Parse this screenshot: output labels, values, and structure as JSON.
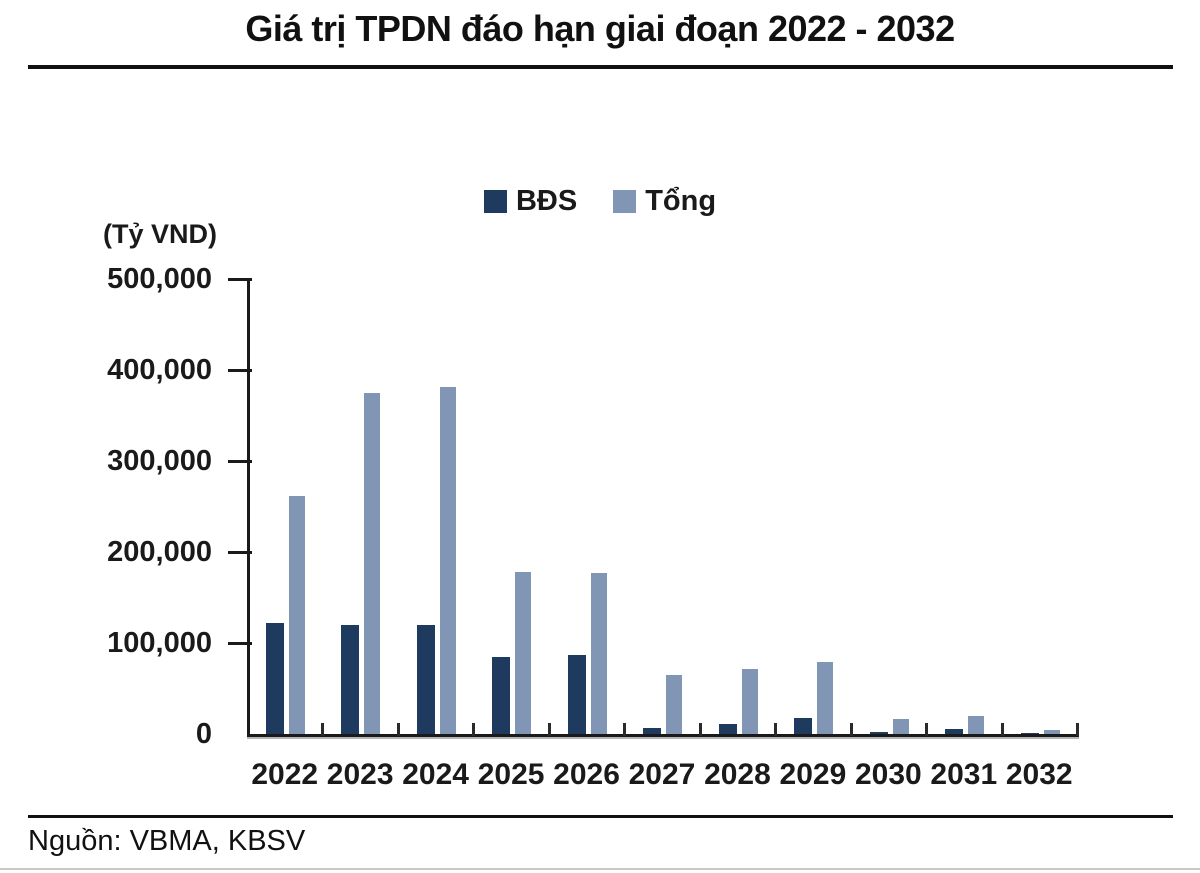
{
  "title": "Giá trị TPDN đáo hạn giai đoạn 2022 - 2032",
  "axis_unit": "(Tỷ VND)",
  "source": "Nguồn: VBMA, KBSV",
  "legend": [
    {
      "label": "BĐS",
      "color": "#1e3a5f"
    },
    {
      "label": "Tổng",
      "color": "#8096b4"
    }
  ],
  "colors": {
    "bds": "#1e3a5f",
    "tong": "#8096b4",
    "axis": "#1a1a1a",
    "axis_shadow": "#b5b5b5",
    "bottom_rule": "#c9c9c9"
  },
  "chart_data": {
    "type": "bar",
    "title": "Giá trị TPDN đáo hạn giai đoạn 2022 - 2032",
    "ylabel": "(Tỷ VND)",
    "xlabel": "",
    "categories": [
      "2022",
      "2023",
      "2024",
      "2025",
      "2026",
      "2027",
      "2028",
      "2029",
      "2030",
      "2031",
      "2032"
    ],
    "series": [
      {
        "name": "BĐS",
        "color": "#1e3a5f",
        "values": [
          122000,
          120000,
          120000,
          85000,
          87000,
          7000,
          11000,
          18000,
          2000,
          6000,
          1000
        ]
      },
      {
        "name": "Tổng",
        "color": "#8096b4",
        "values": [
          262000,
          375000,
          381000,
          178000,
          177000,
          65000,
          71000,
          79000,
          16000,
          20000,
          4000
        ]
      }
    ],
    "ylim": [
      0,
      500000
    ],
    "ytick_step": 100000,
    "ytick_labels": [
      "0",
      "100,000",
      "200,000",
      "300,000",
      "400,000",
      "500,000"
    ],
    "grid": false,
    "legend_position": "top-center"
  }
}
